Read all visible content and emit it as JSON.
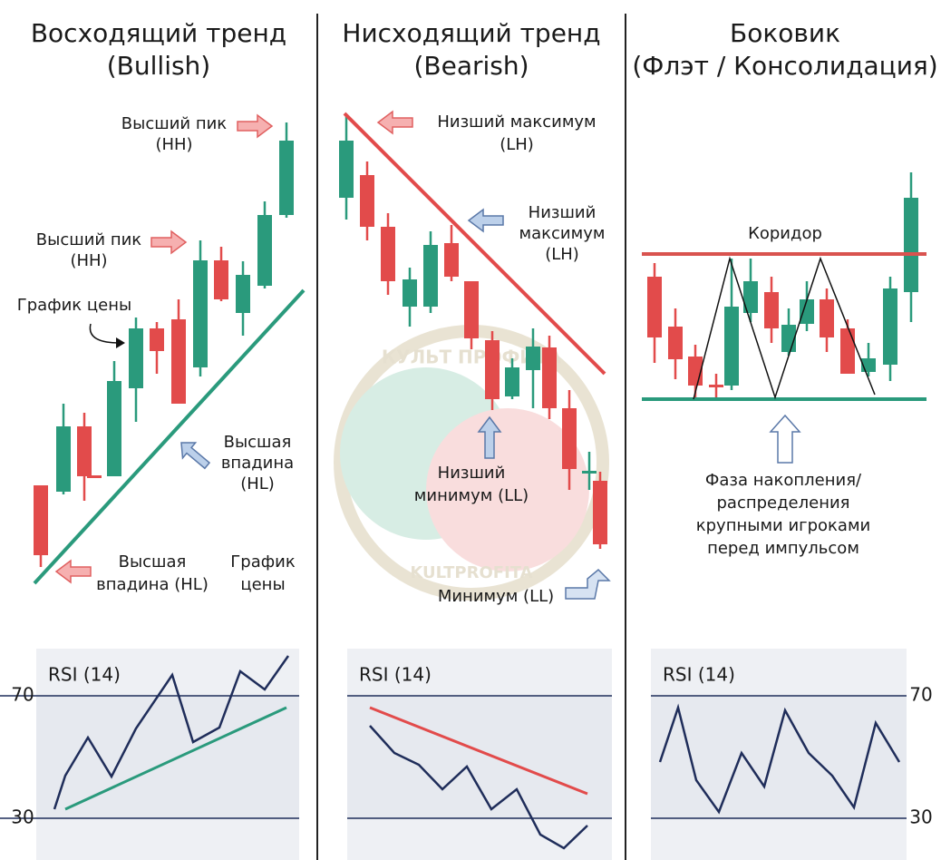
{
  "panels": [
    {
      "title": [
        "Восходящий тренд",
        "(Bullish)"
      ],
      "labels": [
        [
          "Высший пик",
          "(HH)"
        ],
        [
          "Высший пик",
          "(HH)"
        ],
        [
          "График цены"
        ],
        [
          "Высшая",
          "впадина",
          "(HL)"
        ],
        [
          "Высшая",
          "впадина (HL)"
        ],
        [
          "График",
          "цены"
        ]
      ],
      "rsi": {
        "label": "RSI (14)",
        "ticks": [
          "70",
          "30"
        ]
      }
    },
    {
      "title": [
        "Нисходящий тренд",
        "(Bearish)"
      ],
      "labels": [
        [
          "Низший максимум",
          "(LH)"
        ],
        [
          "Низший",
          "максимум",
          "(LH)"
        ],
        [
          "Низший",
          "минимум (LL)"
        ],
        [
          "Минимум (LL)"
        ]
      ],
      "rsi": {
        "label": "RSI (14)"
      }
    },
    {
      "title": [
        "Боковик",
        "(Флэт / Консолидация)"
      ],
      "labels": [
        [
          "Коридор"
        ],
        [
          "Фаза накопления/",
          "распределения",
          "крупными игроками",
          "перед импульсом"
        ]
      ],
      "rsi": {
        "label": "RSI (14)",
        "ticks": [
          "70",
          "30"
        ]
      }
    }
  ],
  "watermark": [
    "КУЛЬТ ПРОФИТА",
    "KULTPROFITA"
  ]
}
